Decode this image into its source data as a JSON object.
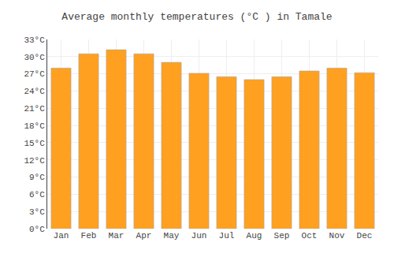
{
  "chart_data": {
    "type": "bar",
    "title": "Average monthly temperatures (°C ) in Tamale",
    "categories": [
      "Jan",
      "Feb",
      "Mar",
      "Apr",
      "May",
      "Jun",
      "Jul",
      "Aug",
      "Sep",
      "Oct",
      "Nov",
      "Dec"
    ],
    "values": [
      28.0,
      30.5,
      31.2,
      30.5,
      29.0,
      27.1,
      26.5,
      26.0,
      26.5,
      27.5,
      28.0,
      27.2
    ],
    "color": "#FFA020",
    "ylim": [
      0,
      33
    ],
    "yticks": [
      {
        "value": 0,
        "label": "0°C"
      },
      {
        "value": 3,
        "label": "3°C"
      },
      {
        "value": 6,
        "label": "6°C"
      },
      {
        "value": 9,
        "label": "9°C"
      },
      {
        "value": 12,
        "label": "12°C"
      },
      {
        "value": 15,
        "label": "15°C"
      },
      {
        "value": 18,
        "label": "18°C"
      },
      {
        "value": 21,
        "label": "21°C"
      },
      {
        "value": 24,
        "label": "24°C"
      },
      {
        "value": 27,
        "label": "27°C"
      },
      {
        "value": 30,
        "label": "30°C"
      },
      {
        "value": 33,
        "label": "33°C"
      }
    ],
    "grid": true
  }
}
